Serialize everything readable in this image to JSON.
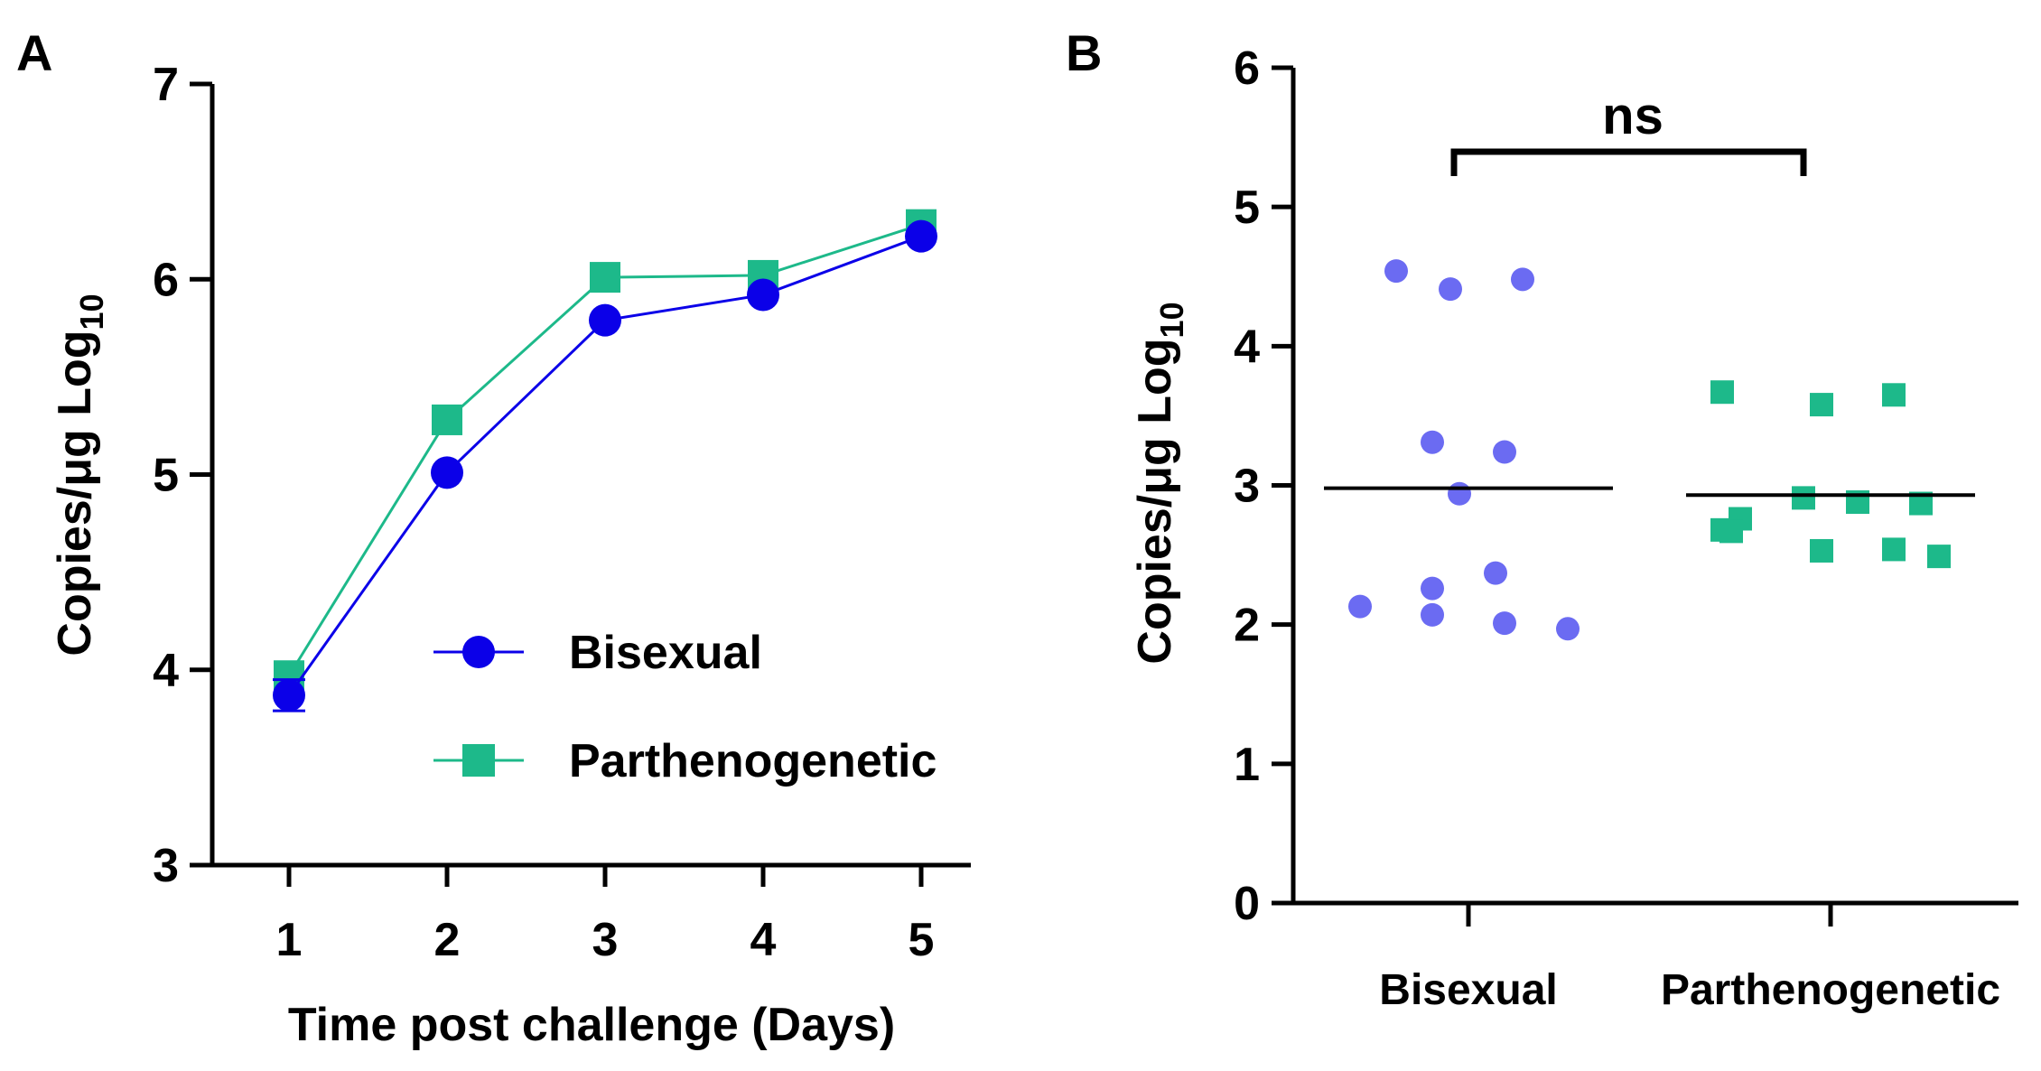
{
  "chart_data": [
    {
      "panel": "A",
      "type": "line",
      "xlabel": "Time post challenge (Days)",
      "ylabel_main": "Copies/μg Log",
      "ylabel_sub": "10",
      "x": [
        1,
        2,
        3,
        4,
        5
      ],
      "xticks": [
        "1",
        "2",
        "3",
        "4",
        "5"
      ],
      "xlim": [
        0.5,
        5.5
      ],
      "ylim": [
        3,
        7
      ],
      "yticks": [
        "3",
        "4",
        "5",
        "6",
        "7"
      ],
      "series": [
        {
          "name": "Bisexual",
          "color": "#0b00e8",
          "marker": "circle",
          "values": [
            3.87,
            5.01,
            5.79,
            5.92,
            6.22
          ],
          "err": [
            0.08,
            0,
            0,
            0,
            0
          ]
        },
        {
          "name": "Parthenogenetic",
          "color": "#1db98a",
          "marker": "square",
          "values": [
            3.97,
            5.28,
            6.01,
            6.02,
            6.28
          ],
          "err": [
            0,
            0,
            0,
            0,
            0
          ]
        }
      ],
      "legend_position": "center-right"
    },
    {
      "panel": "B",
      "type": "scatter",
      "ylabel_main": "Copies/μg Log",
      "ylabel_sub": "10",
      "categories": [
        "Bisexual",
        "Parthenogenetic"
      ],
      "ylim": [
        0,
        6
      ],
      "yticks": [
        "0",
        "1",
        "2",
        "3",
        "4",
        "5",
        "6"
      ],
      "groups": [
        {
          "name": "Bisexual",
          "color": "#6b6bf2",
          "marker": "circle",
          "mean": 2.98,
          "points": [
            {
              "dx": -0.16,
              "y": 4.54
            },
            {
              "dx": -0.04,
              "y": 4.41
            },
            {
              "dx": 0.12,
              "y": 4.48
            },
            {
              "dx": -0.08,
              "y": 3.31
            },
            {
              "dx": 0.08,
              "y": 3.24
            },
            {
              "dx": -0.02,
              "y": 2.94
            },
            {
              "dx": -0.08,
              "y": 2.26
            },
            {
              "dx": 0.06,
              "y": 2.37
            },
            {
              "dx": -0.24,
              "y": 2.13
            },
            {
              "dx": -0.08,
              "y": 2.07
            },
            {
              "dx": 0.08,
              "y": 2.01
            },
            {
              "dx": 0.22,
              "y": 1.97
            }
          ]
        },
        {
          "name": "Parthenogenetic",
          "color": "#1db98a",
          "marker": "square",
          "mean": 2.93,
          "points": [
            {
              "dx": -0.24,
              "y": 3.67
            },
            {
              "dx": -0.02,
              "y": 3.58
            },
            {
              "dx": 0.14,
              "y": 3.65
            },
            {
              "dx": -0.24,
              "y": 2.68
            },
            {
              "dx": -0.2,
              "y": 2.76
            },
            {
              "dx": -0.22,
              "y": 2.67
            },
            {
              "dx": -0.06,
              "y": 2.91
            },
            {
              "dx": 0.06,
              "y": 2.88
            },
            {
              "dx": 0.2,
              "y": 2.87
            },
            {
              "dx": -0.02,
              "y": 2.53
            },
            {
              "dx": 0.14,
              "y": 2.54
            },
            {
              "dx": 0.24,
              "y": 2.49
            }
          ]
        }
      ],
      "significance": {
        "label": "ns",
        "between": [
          "Bisexual",
          "Parthenogenetic"
        ]
      }
    }
  ]
}
